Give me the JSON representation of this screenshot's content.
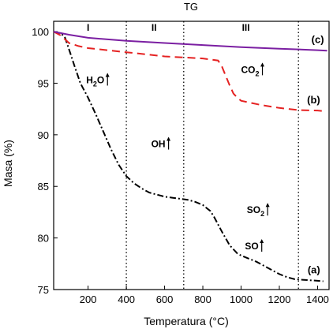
{
  "chart_data": {
    "type": "line",
    "title": "TG",
    "xlabel": "Temperatura (°C)",
    "ylabel": "Masa (%)",
    "xlim": [
      20,
      1460
    ],
    "ylim": [
      75,
      101
    ],
    "xticks": [
      200,
      400,
      600,
      800,
      1000,
      1200,
      1400
    ],
    "yticks": [
      75,
      80,
      85,
      90,
      95,
      100
    ],
    "regions": {
      "labels": [
        "I",
        "II",
        "III"
      ],
      "label_x": [
        200,
        545,
        1025
      ],
      "boundaries": [
        400,
        700,
        1300
      ]
    },
    "series": [
      {
        "name": "(a)",
        "color": "#000000",
        "dash": "dash-dot",
        "x": [
          20,
          60,
          80,
          100,
          130,
          160,
          200,
          240,
          280,
          320,
          360,
          400,
          440,
          480,
          520,
          560,
          600,
          640,
          680,
          720,
          760,
          800,
          840,
          860,
          880,
          900,
          940,
          960,
          980,
          1000,
          1040,
          1080,
          1120,
          1160,
          1200,
          1240,
          1280,
          1320,
          1360,
          1400,
          1430
        ],
        "y": [
          100,
          99.8,
          99.4,
          98.3,
          96.6,
          95.0,
          93.6,
          92.0,
          90.3,
          88.6,
          87.1,
          86.0,
          85.3,
          84.8,
          84.4,
          84.2,
          84.0,
          83.9,
          83.8,
          83.7,
          83.5,
          83.2,
          82.6,
          82.0,
          81.3,
          80.6,
          79.3,
          78.9,
          78.5,
          78.3,
          78.0,
          77.7,
          77.3,
          76.9,
          76.5,
          76.2,
          76.0,
          75.95,
          75.9,
          75.85,
          75.8
        ]
      },
      {
        "name": "(b)",
        "color": "#e52222",
        "dash": "dash",
        "x": [
          20,
          60,
          100,
          150,
          200,
          300,
          400,
          500,
          600,
          700,
          800,
          880,
          900,
          920,
          940,
          960,
          980,
          1000,
          1100,
          1200,
          1300,
          1400,
          1430
        ],
        "y": [
          100,
          99.6,
          98.9,
          98.6,
          98.4,
          98.2,
          98.0,
          97.8,
          97.6,
          97.5,
          97.4,
          97.2,
          96.6,
          95.7,
          94.8,
          94.0,
          93.6,
          93.3,
          92.9,
          92.6,
          92.4,
          92.35,
          92.3
        ]
      },
      {
        "name": "(c)",
        "color": "#7b1fa2",
        "dash": "solid",
        "x": [
          20,
          100,
          200,
          400,
          600,
          800,
          1000,
          1200,
          1400,
          1450
        ],
        "y": [
          100,
          99.7,
          99.4,
          99.1,
          98.9,
          98.7,
          98.5,
          98.35,
          98.2,
          98.15
        ]
      }
    ],
    "annotations": [
      {
        "text": "H",
        "sub": "2",
        "text2": "O",
        "x": 190,
        "y": 95.0
      },
      {
        "text": "CO",
        "sub": "2",
        "text2": "",
        "x": 1000,
        "y": 96.0
      },
      {
        "text": "OH",
        "sub": "",
        "text2": "",
        "x": 530,
        "y": 88.8
      },
      {
        "text": "SO",
        "sub": "2",
        "text2": "",
        "x": 1030,
        "y": 82.4
      },
      {
        "text": "SO",
        "sub": "",
        "text2": "",
        "x": 1020,
        "y": 78.9
      }
    ]
  }
}
